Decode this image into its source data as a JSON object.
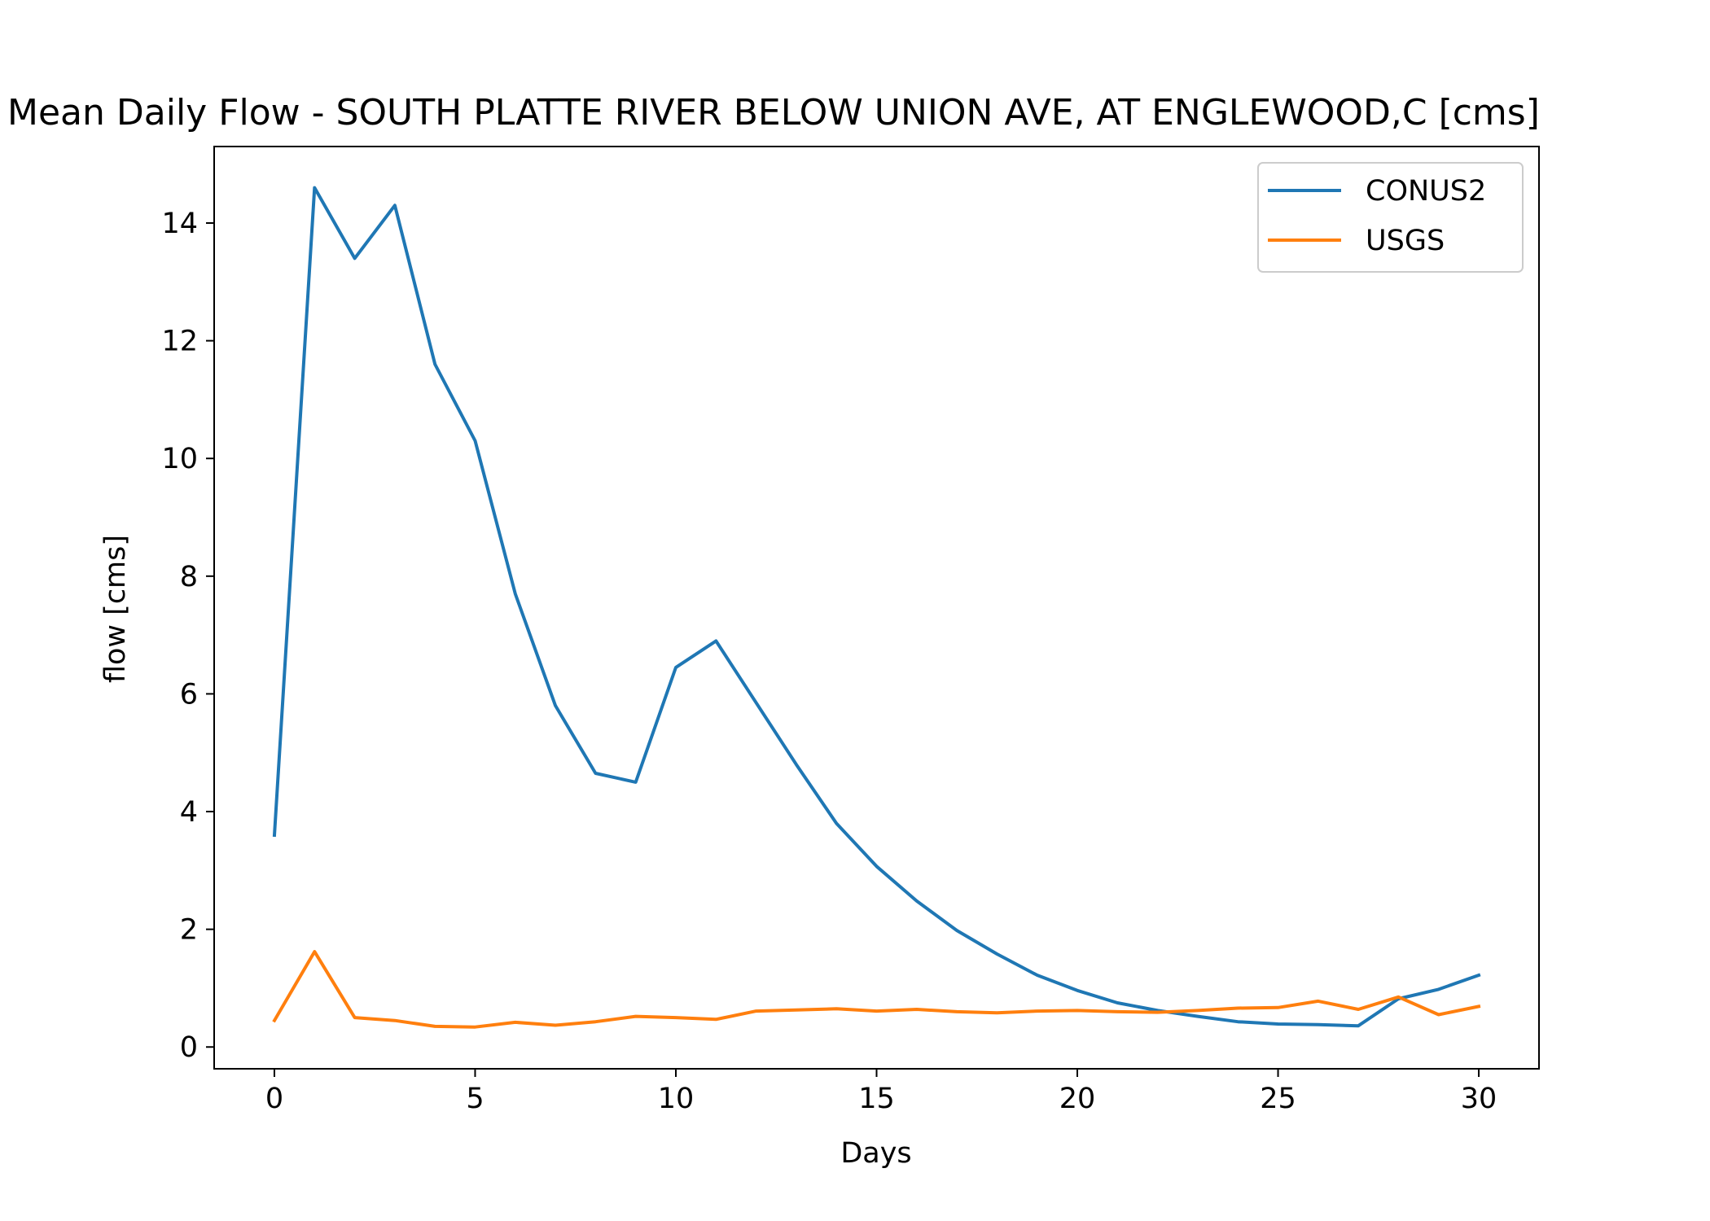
{
  "chart_data": {
    "type": "line",
    "title": "Mean Daily Flow - SOUTH PLATTE RIVER BELOW UNION AVE, AT ENGLEWOOD,C [cms]",
    "xlabel": "Days",
    "ylabel": "flow [cms]",
    "xlim": [
      -1.5,
      31.5
    ],
    "ylim": [
      -0.37,
      15.3
    ],
    "xticks": [
      0,
      5,
      10,
      15,
      20,
      25,
      30
    ],
    "yticks": [
      0,
      2,
      4,
      6,
      8,
      10,
      12,
      14
    ],
    "grid": false,
    "legend": {
      "position": "top-right"
    },
    "x": [
      0,
      1,
      2,
      3,
      4,
      5,
      6,
      7,
      8,
      9,
      10,
      11,
      12,
      13,
      14,
      15,
      16,
      17,
      18,
      19,
      20,
      21,
      22,
      23,
      24,
      25,
      26,
      27,
      28,
      29,
      30
    ],
    "series": [
      {
        "name": "CONUS2",
        "color": "#1f77b4",
        "values": [
          3.6,
          14.6,
          13.4,
          14.3,
          11.6,
          10.3,
          7.7,
          5.8,
          4.65,
          4.5,
          6.45,
          6.9,
          5.85,
          4.8,
          3.8,
          3.07,
          2.48,
          1.98,
          1.58,
          1.22,
          0.96,
          0.75,
          0.62,
          0.52,
          0.43,
          0.39,
          0.38,
          0.36,
          0.82,
          0.98,
          1.22
        ]
      },
      {
        "name": "USGS",
        "color": "#ff7f0e",
        "values": [
          0.45,
          1.62,
          0.5,
          0.45,
          0.35,
          0.34,
          0.42,
          0.37,
          0.43,
          0.52,
          0.5,
          0.47,
          0.61,
          0.63,
          0.65,
          0.61,
          0.64,
          0.6,
          0.58,
          0.61,
          0.62,
          0.6,
          0.59,
          0.62,
          0.66,
          0.67,
          0.78,
          0.64,
          0.85,
          0.55,
          0.69
        ]
      }
    ]
  }
}
